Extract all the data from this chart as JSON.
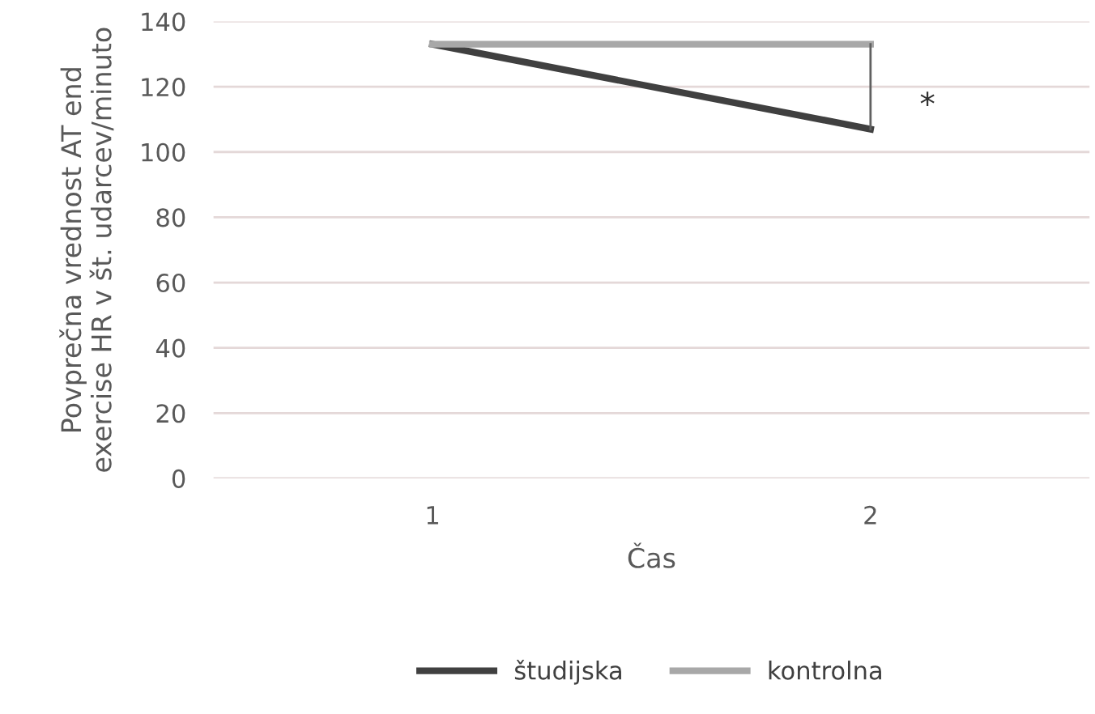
{
  "chart_data": {
    "type": "line",
    "xlabel": "Čas",
    "ylabel": "Povprečna vrednost AT end\nexercise HR v št. udarcev/minuto",
    "categories": [
      "1",
      "2"
    ],
    "series": [
      {
        "name": "študijska",
        "color": "#404040",
        "values": [
          133,
          107
        ]
      },
      {
        "name": "kontrolna",
        "color": "#a8a8a8",
        "values": [
          133,
          133
        ]
      }
    ],
    "annotations": [
      "*"
    ],
    "ylim": [
      0,
      140
    ],
    "yticks": [
      0,
      20,
      40,
      60,
      80,
      100,
      120,
      140
    ],
    "grid": "y",
    "legend": "bottom",
    "marker": "none",
    "line_style": "solid"
  }
}
